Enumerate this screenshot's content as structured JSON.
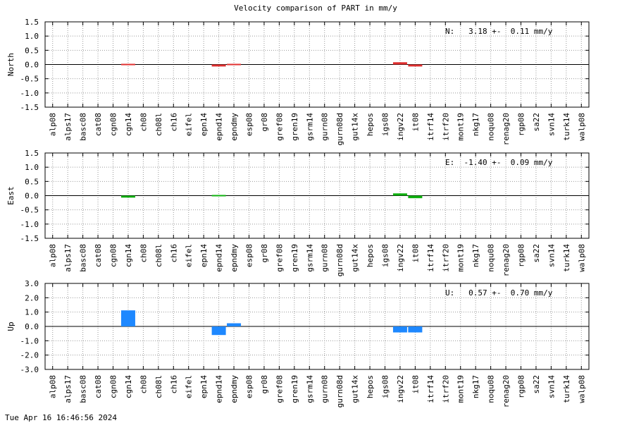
{
  "title": "Velocity comparison of PART in mm/y",
  "footer": "Tue Apr 16 16:46:56 2024",
  "chart_data": [
    {
      "type": "bar",
      "ylabel": "North",
      "ylim": [
        -1.5,
        1.5
      ],
      "yticks": [
        "1.5",
        "1.0",
        "0.5",
        "0.0",
        "-0.5",
        "-1.0",
        "-1.5"
      ],
      "stat": "N:   3.18 +-  0.11 mm/y",
      "color": "#e03030",
      "grid": true,
      "categories": [
        "alp08",
        "alps17",
        "basc08",
        "cat08",
        "cgn08",
        "cgn14",
        "ch08",
        "ch08l",
        "ch16",
        "eifel",
        "epn14",
        "epnd14",
        "epndmy",
        "esp08",
        "gr08",
        "gref08",
        "gren19",
        "gsrm14",
        "gurn08",
        "gurn08d",
        "gut14x",
        "hepos",
        "igs08",
        "ingv22",
        "it08",
        "itrf14",
        "itrf20",
        "mont19",
        "nkg17",
        "noqu08",
        "renag20",
        "rgp08",
        "sa22",
        "svn14",
        "turk14",
        "walp08"
      ],
      "values": [
        null,
        null,
        null,
        null,
        null,
        0.02,
        null,
        null,
        null,
        null,
        null,
        -0.07,
        0.01,
        null,
        null,
        null,
        null,
        null,
        null,
        null,
        null,
        null,
        null,
        0.08,
        -0.07,
        null,
        null,
        null,
        null,
        null,
        null,
        null,
        null,
        null,
        null,
        null
      ]
    },
    {
      "type": "bar",
      "ylabel": "East",
      "ylim": [
        -1.5,
        1.5
      ],
      "yticks": [
        "1.5",
        "1.0",
        "0.5",
        "0.0",
        "-0.5",
        "-1.0",
        "-1.5"
      ],
      "stat": "E:  -1.40 +-  0.09 mm/y",
      "color": "#10b010",
      "grid": true,
      "categories": [
        "alp08",
        "alps17",
        "basc08",
        "cat08",
        "cgn08",
        "cgn14",
        "ch08",
        "ch08l",
        "ch16",
        "eifel",
        "epn14",
        "epnd14",
        "epndmy",
        "esp08",
        "gr08",
        "gref08",
        "gren19",
        "gsrm14",
        "gurn08",
        "gurn08d",
        "gut14x",
        "hepos",
        "igs08",
        "ingv22",
        "it08",
        "itrf14",
        "itrf20",
        "mont19",
        "nkg17",
        "noqu08",
        "renag20",
        "rgp08",
        "sa22",
        "svn14",
        "turk14",
        "walp08"
      ],
      "values": [
        null,
        null,
        null,
        null,
        null,
        -0.07,
        null,
        null,
        null,
        null,
        null,
        0.03,
        null,
        null,
        null,
        null,
        null,
        null,
        null,
        null,
        null,
        null,
        null,
        0.08,
        -0.09,
        null,
        null,
        null,
        null,
        null,
        null,
        null,
        null,
        null,
        null,
        null
      ]
    },
    {
      "type": "bar",
      "ylabel": "Up",
      "ylim": [
        -3.0,
        3.0
      ],
      "yticks": [
        "3.0",
        "2.0",
        "1.0",
        "0.0",
        "-1.0",
        "-2.0",
        "-3.0"
      ],
      "stat": "U:   0.57 +-  0.70 mm/y",
      "color": "#1e88ff",
      "grid": true,
      "categories": [
        "alp08",
        "alps17",
        "basc08",
        "cat08",
        "cgn08",
        "cgn14",
        "ch08",
        "ch08l",
        "ch16",
        "eifel",
        "epn14",
        "epnd14",
        "epndmy",
        "esp08",
        "gr08",
        "gref08",
        "gren19",
        "gsrm14",
        "gurn08",
        "gurn08d",
        "gut14x",
        "hepos",
        "igs08",
        "ingv22",
        "it08",
        "itrf14",
        "itrf20",
        "mont19",
        "nkg17",
        "noqu08",
        "renag20",
        "rgp08",
        "sa22",
        "svn14",
        "turk14",
        "walp08"
      ],
      "values": [
        null,
        null,
        null,
        null,
        null,
        1.12,
        null,
        null,
        null,
        null,
        null,
        -0.6,
        0.22,
        null,
        null,
        null,
        null,
        null,
        null,
        null,
        null,
        null,
        null,
        -0.42,
        -0.42,
        null,
        null,
        null,
        null,
        null,
        null,
        null,
        null,
        null,
        null,
        null
      ]
    }
  ]
}
